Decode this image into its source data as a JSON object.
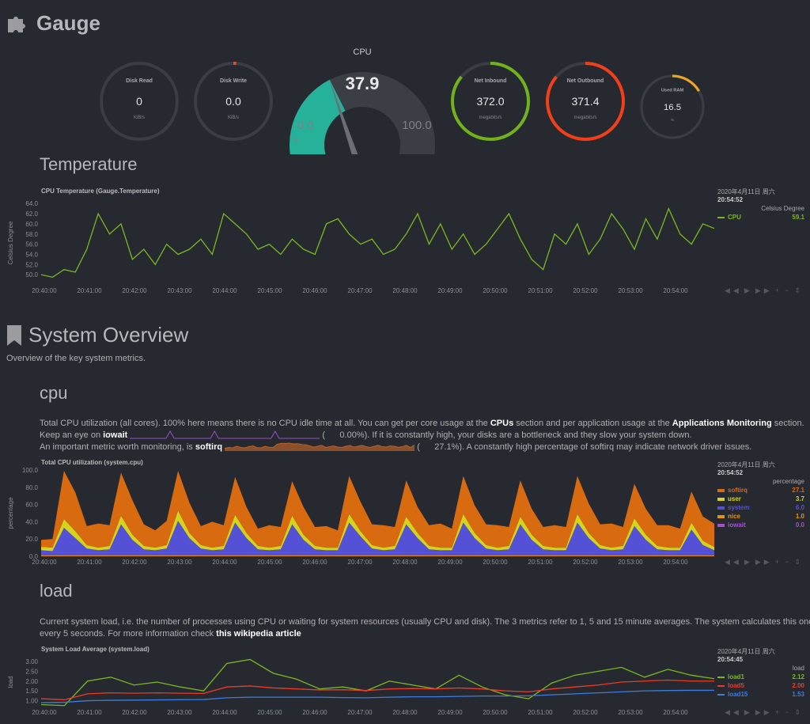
{
  "gauge_section": {
    "title": "Gauge",
    "icon": "puzzle-icon"
  },
  "gauges": [
    {
      "title": "Disk Read",
      "value": "0",
      "unit": "KiB/s",
      "fraction": 0,
      "color": "#e84d30"
    },
    {
      "title": "Disk Write",
      "value": "0.0",
      "unit": "KiB/s",
      "fraction": 0.01,
      "color": "#e84d30"
    },
    {
      "title": "Net Inbound",
      "value": "372.0",
      "unit": "megabits/s",
      "fraction": 0.86,
      "color": "#71b21b"
    },
    {
      "title": "Net Outbound",
      "value": "371.4",
      "unit": "megabits/s",
      "fraction": 0.86,
      "color": "#f23f1a"
    },
    {
      "title": "Used RAM",
      "value": "16.5",
      "unit": "%",
      "fraction": 0.165,
      "color": "#e9a722"
    }
  ],
  "cpu_gauge": {
    "title": "CPU",
    "value": "37.9",
    "min": "0.0",
    "max": "100.0",
    "unit": "%",
    "fraction": 0.379,
    "color": "#26b29a"
  },
  "temperature": {
    "heading": "Temperature"
  },
  "system_overview": {
    "title": "System Overview",
    "icon": "bookmark-icon",
    "subtitle": "Overview of the key system metrics."
  },
  "cpu": {
    "heading": "cpu",
    "desc1_a": "Total CPU utilization (all cores). 100% here means there is no CPU idle time at all. You can get per core usage at the ",
    "desc1_link1": "CPUs",
    "desc1_b": " section and per application usage at the ",
    "desc1_link2": "Applications Monitoring",
    "desc1_c": " section.",
    "desc2_a": "Keep an eye on ",
    "desc2_b": "iowait",
    "desc2_val": "(      0.00%)",
    "desc2_c": ". If it is constantly high, your disks are a bottleneck and they slow your system down.",
    "desc3_a": "An important metric worth monitoring, is ",
    "desc3_b": "softirq",
    "desc3_val": "(      27.1%)",
    "desc3_c": ". A constantly high percentage of softirq may indicate network driver issues.",
    "iowait_spark": [
      0,
      0,
      0,
      0,
      0,
      0,
      0,
      0,
      0,
      0,
      1,
      0,
      0,
      0,
      0,
      0,
      0,
      0,
      0,
      0,
      0,
      1,
      0,
      0,
      0,
      0,
      0,
      0,
      0,
      0,
      0,
      0,
      0,
      0,
      0,
      0,
      1,
      0,
      0,
      0,
      0,
      0,
      0,
      0,
      0,
      0,
      0,
      0
    ],
    "softirq_spark": [
      10,
      14,
      12,
      20,
      14,
      12,
      18,
      22,
      13,
      12,
      20,
      15,
      14,
      30,
      35,
      34,
      36,
      32,
      33,
      30,
      28,
      22,
      16,
      20,
      25,
      14,
      18,
      22,
      16,
      14,
      20,
      24,
      16,
      20,
      25,
      18,
      14,
      20,
      25,
      18,
      16,
      22,
      20,
      15,
      18,
      25,
      14,
      27
    ]
  },
  "load": {
    "heading": "load",
    "desc1": "Current system load, i.e. the number of processes using CPU or waiting for system resources (usually CPU and disk). The 3 metrics refer to 1, 5 and 15 minute averages. The system calculates this once",
    "desc2_a": "every 5 seconds. For more information check ",
    "desc2_link": "this wikipedia article"
  },
  "controls": {
    "left": "◀◀",
    "play": "▶",
    "right": "▶▶",
    "zoom_in": "+",
    "zoom_out": "−",
    "resize": "⇕"
  },
  "chart_data": [
    {
      "id": "temp",
      "type": "line",
      "title": "CPU Temperature (Gauge.Temperature)",
      "ylabel": "Celsius Degree",
      "legend_unit": "Celsius Degree",
      "date": "2020年4月11日 周六",
      "time": "20:54:52",
      "yticks": [
        "64.0",
        "62.0",
        "60.0",
        "58.0",
        "56.0",
        "54.0",
        "52.0",
        "50.0"
      ],
      "ylim": [
        48,
        64.5
      ],
      "xticks": [
        "20:40:00",
        "20:41:00",
        "20:42:00",
        "20:43:00",
        "20:44:00",
        "20:45:00",
        "20:46:00",
        "20:47:00",
        "20:48:00",
        "20:49:00",
        "20:50:00",
        "20:51:00",
        "20:52:00",
        "20:53:00",
        "20:54:00"
      ],
      "series": [
        {
          "name": "CPU",
          "value": "59.1",
          "color": "#7cb81e",
          "values": [
            50,
            49.5,
            51,
            50.5,
            55,
            62,
            58,
            60,
            53,
            55,
            52,
            56,
            54,
            55,
            57,
            54,
            62,
            60,
            58,
            55,
            56,
            54,
            57,
            55,
            54,
            60,
            61,
            58,
            56,
            57,
            54,
            55,
            58,
            62,
            56,
            60,
            55,
            58,
            54,
            56,
            59,
            62,
            57,
            53,
            51,
            58,
            56,
            60,
            54,
            57,
            62,
            59,
            55,
            61,
            57,
            63,
            58,
            56,
            60,
            59.1
          ]
        }
      ]
    },
    {
      "id": "cpu",
      "type": "area",
      "stacked": true,
      "title": "Total CPU utilization (system.cpu)",
      "ylabel": "percentage",
      "legend_unit": "percentage",
      "date": "2020年4月11日 周六",
      "time": "20:54:52",
      "yticks": [
        "100.0",
        "80.0",
        "60.0",
        "40.0",
        "20.0",
        "0.0"
      ],
      "ylim": [
        0,
        100
      ],
      "xticks": [
        "20:40:00",
        "20:41:00",
        "20:42:00",
        "20:43:00",
        "20:44:00",
        "20:45:00",
        "20:46:00",
        "20:47:00",
        "20:48:00",
        "20:49:00",
        "20:50:00",
        "20:51:00",
        "20:52:00",
        "20:53:00",
        "20:54:00"
      ],
      "series": [
        {
          "name": "iowait",
          "value": "0.0",
          "color": "#a64fd5",
          "values": [
            0,
            0,
            0,
            0,
            0,
            0,
            0,
            0,
            0,
            0,
            0,
            0,
            0,
            0,
            0,
            0,
            0,
            0,
            0,
            0,
            0,
            0,
            0,
            0,
            0,
            0,
            0,
            0,
            0,
            0,
            0,
            0,
            0,
            0,
            0,
            0,
            0,
            0,
            0,
            0,
            0,
            0,
            0,
            0,
            0,
            0,
            0,
            0,
            0,
            0,
            0,
            0,
            0,
            0,
            0,
            0,
            0,
            0,
            0,
            0
          ]
        },
        {
          "name": "nice",
          "value": "1.0",
          "color": "#e8930b",
          "values": [
            1,
            1,
            1,
            1,
            1,
            1,
            1,
            1,
            1,
            1,
            1,
            1,
            1,
            1,
            1,
            1,
            1,
            1,
            1,
            1,
            1,
            1,
            1,
            1,
            1,
            1,
            1,
            1,
            1,
            1,
            1,
            1,
            1,
            1,
            1,
            1,
            1,
            1,
            1,
            1,
            1,
            1,
            1,
            1,
            1,
            1,
            1,
            1,
            1,
            1,
            1,
            1,
            1,
            1,
            1,
            1,
            1,
            1,
            1,
            1
          ]
        },
        {
          "name": "system",
          "value": "6.0",
          "color": "#5451d6",
          "values": [
            6,
            5,
            32,
            20,
            8,
            6,
            7,
            36,
            18,
            7,
            6,
            8,
            40,
            20,
            8,
            6,
            7,
            38,
            20,
            7,
            6,
            7,
            36,
            18,
            7,
            6,
            6,
            38,
            22,
            8,
            6,
            7,
            36,
            20,
            7,
            6,
            6,
            38,
            20,
            8,
            6,
            7,
            36,
            18,
            7,
            6,
            6,
            38,
            20,
            8,
            6,
            7,
            34,
            18,
            7,
            6,
            6,
            30,
            12,
            6
          ]
        },
        {
          "name": "user",
          "value": "3.7",
          "color": "#d5d41d",
          "values": [
            4,
            4,
            10,
            8,
            4,
            3,
            4,
            10,
            6,
            4,
            3,
            4,
            12,
            6,
            4,
            3,
            4,
            9,
            6,
            4,
            3,
            4,
            10,
            6,
            4,
            3,
            3,
            10,
            6,
            4,
            3,
            4,
            9,
            6,
            4,
            3,
            3,
            10,
            6,
            4,
            3,
            4,
            9,
            6,
            4,
            3,
            3,
            10,
            6,
            4,
            3,
            4,
            9,
            6,
            4,
            3,
            3,
            8,
            5,
            3.7
          ]
        },
        {
          "name": "softirq",
          "value": "27.1",
          "color": "#d86a10",
          "values": [
            8,
            10,
            56,
            45,
            22,
            28,
            24,
            50,
            40,
            25,
            20,
            28,
            46,
            35,
            22,
            30,
            24,
            44,
            30,
            20,
            26,
            22,
            40,
            32,
            22,
            25,
            20,
            44,
            34,
            24,
            26,
            22,
            42,
            30,
            24,
            28,
            22,
            44,
            32,
            24,
            26,
            22,
            42,
            30,
            22,
            26,
            24,
            44,
            34,
            24,
            28,
            22,
            40,
            30,
            24,
            26,
            22,
            36,
            28,
            27.1
          ]
        }
      ]
    },
    {
      "id": "load",
      "type": "line",
      "title": "System Load Average (system.load)",
      "ylabel": "load",
      "legend_unit": "load",
      "date": "2020年4月11日 周六",
      "time": "20:54:45",
      "yticks": [
        "3.00",
        "2.50",
        "2.00",
        "1.50",
        "1.00"
      ],
      "ylim": [
        0.7,
        3.2
      ],
      "xticks": [
        "20:40:00",
        "20:41:00",
        "20:42:00",
        "20:43:00",
        "20:44:00",
        "20:45:00",
        "20:46:00",
        "20:47:00",
        "20:48:00",
        "20:49:00",
        "20:50:00",
        "20:51:00",
        "20:52:00",
        "20:53:00",
        "20:54:00"
      ],
      "series": [
        {
          "name": "load1",
          "value": "2.12",
          "color": "#7cb81e",
          "values": [
            0.8,
            0.75,
            2.0,
            2.2,
            1.8,
            1.95,
            1.7,
            1.5,
            2.9,
            3.1,
            2.4,
            2.1,
            1.6,
            1.7,
            1.5,
            2.0,
            1.8,
            1.6,
            2.3,
            1.7,
            1.3,
            1.1,
            1.9,
            2.3,
            2.5,
            2.7,
            2.2,
            2.6,
            2.3,
            2.12
          ]
        },
        {
          "name": "load5",
          "value": "2.00",
          "color": "#ef3b25",
          "values": [
            1.1,
            1.05,
            1.35,
            1.4,
            1.38,
            1.4,
            1.38,
            1.37,
            1.7,
            1.75,
            1.65,
            1.6,
            1.55,
            1.56,
            1.52,
            1.6,
            1.62,
            1.6,
            1.65,
            1.6,
            1.5,
            1.45,
            1.6,
            1.7,
            1.8,
            1.95,
            2.0,
            2.05,
            2.0,
            2.0
          ]
        },
        {
          "name": "load15",
          "value": "1.53",
          "color": "#3e7ce0",
          "values": [
            0.9,
            0.92,
            1.0,
            1.02,
            1.03,
            1.04,
            1.05,
            1.06,
            1.15,
            1.18,
            1.18,
            1.18,
            1.18,
            1.16,
            1.15,
            1.18,
            1.2,
            1.2,
            1.22,
            1.24,
            1.24,
            1.25,
            1.3,
            1.35,
            1.4,
            1.45,
            1.5,
            1.52,
            1.53,
            1.53
          ]
        }
      ]
    }
  ]
}
